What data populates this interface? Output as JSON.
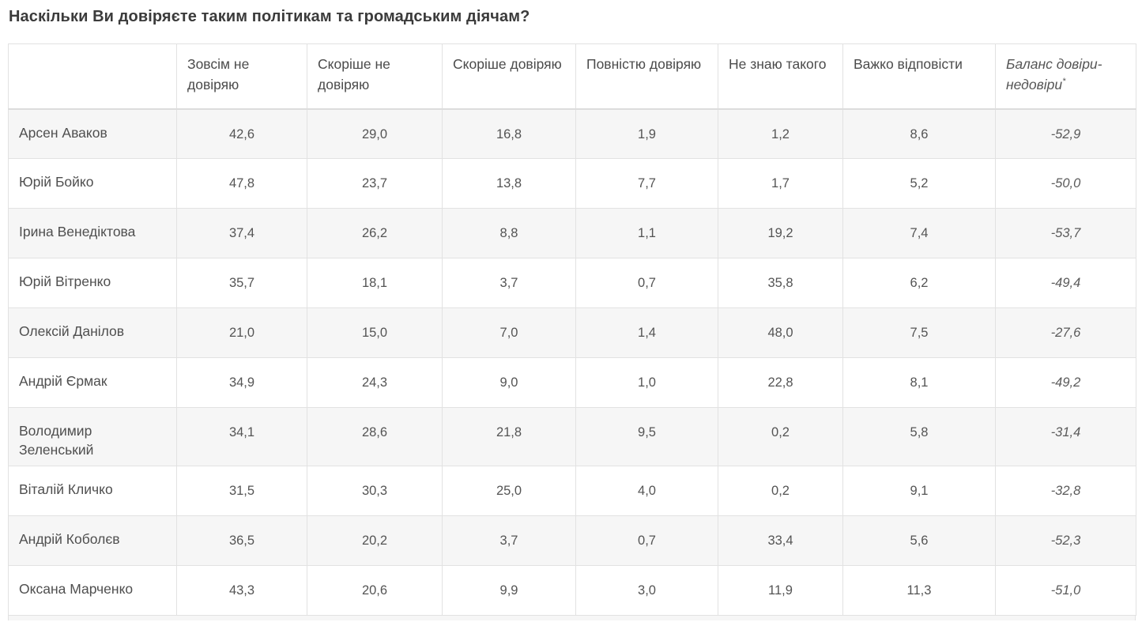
{
  "title": "Наскільки Ви довіряєте таким політикам та громадським діячам?",
  "table": {
    "columns": [
      "",
      "Зовсім не довіряю",
      "Скоріше не довіряю",
      "Скоріше довіряю",
      "Повністю довіряю",
      "Не знаю такого",
      "Важко відповісти",
      "Баланс довіри-недовіри"
    ],
    "footnote_marker": "*",
    "rows": [
      {
        "name": "Арсен Аваков",
        "values": [
          "42,6",
          "29,0",
          "16,8",
          "1,9",
          "1,2",
          "8,6"
        ],
        "balance": "-52,9"
      },
      {
        "name": "Юрій Бойко",
        "values": [
          "47,8",
          "23,7",
          "13,8",
          "7,7",
          "1,7",
          "5,2"
        ],
        "balance": "-50,0"
      },
      {
        "name": "Ірина Венедіктова",
        "values": [
          "37,4",
          "26,2",
          "8,8",
          "1,1",
          "19,2",
          "7,4"
        ],
        "balance": "-53,7"
      },
      {
        "name": "Юрій Вітренко",
        "values": [
          "35,7",
          "18,1",
          "3,7",
          "0,7",
          "35,8",
          "6,2"
        ],
        "balance": "-49,4"
      },
      {
        "name": "Олексій Данілов",
        "values": [
          "21,0",
          "15,0",
          "7,0",
          "1,4",
          "48,0",
          "7,5"
        ],
        "balance": "-27,6"
      },
      {
        "name": "Андрій Єрмак",
        "values": [
          "34,9",
          "24,3",
          "9,0",
          "1,0",
          "22,8",
          "8,1"
        ],
        "balance": "-49,2"
      },
      {
        "name": "Володимир Зеленський",
        "values": [
          "34,1",
          "28,6",
          "21,8",
          "9,5",
          "0,2",
          "5,8"
        ],
        "balance": "-31,4"
      },
      {
        "name": "Віталій Кличко",
        "values": [
          "31,5",
          "30,3",
          "25,0",
          "4,0",
          "0,2",
          "9,1"
        ],
        "balance": "-32,8"
      },
      {
        "name": "Андрій Коболєв",
        "values": [
          "36,5",
          "20,2",
          "3,7",
          "0,7",
          "33,4",
          "5,6"
        ],
        "balance": "-52,3"
      },
      {
        "name": "Оксана Марченко",
        "values": [
          "43,3",
          "20,6",
          "9,9",
          "3,0",
          "11,9",
          "11,3"
        ],
        "balance": "-51,0"
      }
    ]
  },
  "colors": {
    "page_background": "#ffffff",
    "title_text": "#3b3b3b",
    "cell_text": "#545454",
    "border": "#e2e2e2",
    "zebra_row_background": "#f6f6f6"
  },
  "chart_data": {
    "type": "table",
    "title": "Наскільки Ви довіряєте таким політикам та громадським діячам?",
    "columns": [
      "Зовсім не довіряю",
      "Скоріше не довіряю",
      "Скоріше довіряю",
      "Повністю довіряю",
      "Не знаю такого",
      "Важко відповісти",
      "Баланс довіри-недовіри*"
    ],
    "rows": [
      {
        "name": "Арсен Аваков",
        "values": [
          42.6,
          29.0,
          16.8,
          1.9,
          1.2,
          8.6
        ],
        "balance": -52.9
      },
      {
        "name": "Юрій Бойко",
        "values": [
          47.8,
          23.7,
          13.8,
          7.7,
          1.7,
          5.2
        ],
        "balance": -50.0
      },
      {
        "name": "Ірина Венедіктова",
        "values": [
          37.4,
          26.2,
          8.8,
          1.1,
          19.2,
          7.4
        ],
        "balance": -53.7
      },
      {
        "name": "Юрій Вітренко",
        "values": [
          35.7,
          18.1,
          3.7,
          0.7,
          35.8,
          6.2
        ],
        "balance": -49.4
      },
      {
        "name": "Олексій Данілов",
        "values": [
          21.0,
          15.0,
          7.0,
          1.4,
          48.0,
          7.5
        ],
        "balance": -27.6
      },
      {
        "name": "Андрій Єрмак",
        "values": [
          34.9,
          24.3,
          9.0,
          1.0,
          22.8,
          8.1
        ],
        "balance": -49.2
      },
      {
        "name": "Володимир Зеленський",
        "values": [
          34.1,
          28.6,
          21.8,
          9.5,
          0.2,
          5.8
        ],
        "balance": -31.4
      },
      {
        "name": "Віталій Кличко",
        "values": [
          31.5,
          30.3,
          25.0,
          4.0,
          0.2,
          9.1
        ],
        "balance": -32.8
      },
      {
        "name": "Андрій Коболєв",
        "values": [
          36.5,
          20.2,
          3.7,
          0.7,
          33.4,
          5.6
        ],
        "balance": -52.3
      },
      {
        "name": "Оксана Марченко",
        "values": [
          43.3,
          20.6,
          9.9,
          3.0,
          11.9,
          11.3
        ],
        "balance": -51.0
      }
    ],
    "value_format": "percent, comma decimal separator",
    "notes": "last column (trust-distrust balance) rendered in italics with superscript asterisk footnote marker"
  }
}
